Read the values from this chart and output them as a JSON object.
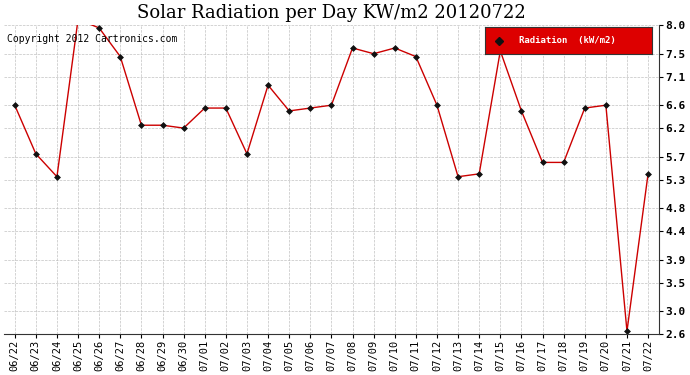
{
  "title": "Solar Radiation per Day KW/m2 20120722",
  "copyright_text": "Copyright 2012 Cartronics.com",
  "legend_label": "Radiation  (kW/m2)",
  "dates": [
    "06/22",
    "06/23",
    "06/24",
    "06/25",
    "06/26",
    "06/27",
    "06/28",
    "06/29",
    "06/30",
    "07/01",
    "07/02",
    "07/03",
    "07/04",
    "07/05",
    "07/06",
    "07/07",
    "07/08",
    "07/09",
    "07/10",
    "07/11",
    "07/12",
    "07/13",
    "07/14",
    "07/15",
    "07/16",
    "07/17",
    "07/18",
    "07/19",
    "07/20",
    "07/21",
    "07/22"
  ],
  "values": [
    6.6,
    5.75,
    5.35,
    8.1,
    7.95,
    7.45,
    6.25,
    6.25,
    6.2,
    6.55,
    6.55,
    5.75,
    6.95,
    6.5,
    6.55,
    6.6,
    7.6,
    7.5,
    7.6,
    7.45,
    6.6,
    5.35,
    5.4,
    7.55,
    6.5,
    5.6,
    5.6,
    6.55,
    6.6,
    2.65,
    5.4
  ],
  "line_color": "#cc0000",
  "marker_color": "#111111",
  "background_color": "#ffffff",
  "grid_color": "#bbbbbb",
  "legend_bg": "#dd0000",
  "legend_text_color": "#ffffff",
  "ylim": [
    2.6,
    8.0
  ],
  "yticks": [
    2.6,
    3.0,
    3.5,
    3.9,
    4.4,
    4.8,
    5.3,
    5.7,
    6.2,
    6.6,
    7.1,
    7.5,
    8.0
  ],
  "title_fontsize": 13,
  "tick_fontsize": 7.5,
  "copyright_fontsize": 7
}
